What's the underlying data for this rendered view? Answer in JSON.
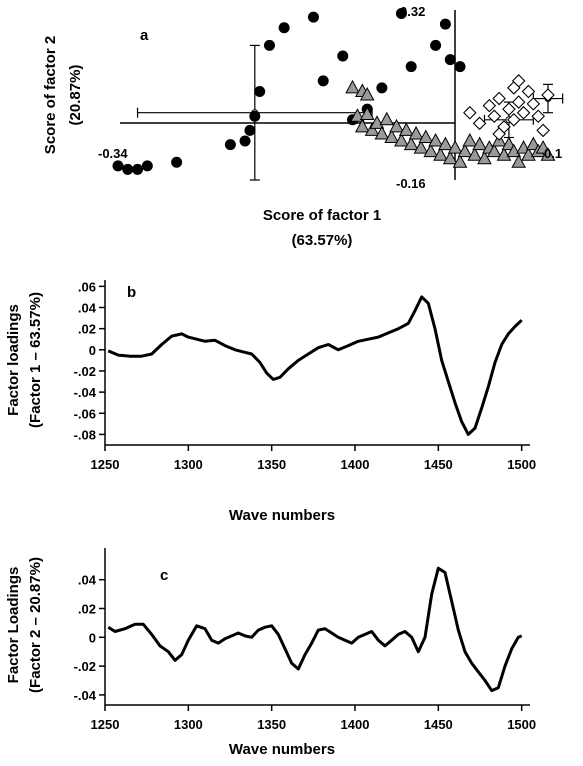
{
  "chart_data": [
    {
      "type": "scatter",
      "panel_label": "a",
      "xlabel_line1": "Score of factor 1",
      "xlabel_line2": "(63.57%)",
      "ylabel_line1": "Score of factor 2",
      "ylabel_line2": "(20.87%)",
      "annotations": {
        "xmin_label": "-0.34",
        "xmax_label": "0.1",
        "ymin_label": "-0.16",
        "ymax_label": "0.32"
      },
      "xlim": [
        -0.34,
        0.1
      ],
      "ylim": [
        -0.16,
        0.32
      ],
      "series": [
        {
          "marker": "filled-circle",
          "points": [
            [
              -0.34,
              -0.12
            ],
            [
              -0.33,
              -0.13
            ],
            [
              -0.32,
              -0.13
            ],
            [
              -0.31,
              -0.12
            ],
            [
              -0.28,
              -0.11
            ],
            [
              -0.225,
              -0.06
            ],
            [
              -0.21,
              -0.05
            ],
            [
              -0.205,
              -0.02
            ],
            [
              -0.2,
              0.02
            ],
            [
              -0.185,
              0.22
            ],
            [
              -0.17,
              0.27
            ],
            [
              -0.14,
              0.3
            ],
            [
              -0.1,
              0.01
            ],
            [
              -0.085,
              0.04
            ],
            [
              -0.07,
              0.1
            ],
            [
              -0.05,
              0.31
            ],
            [
              -0.04,
              0.16
            ],
            [
              -0.015,
              0.22
            ],
            [
              -0.005,
              0.28
            ],
            [
              0.0,
              0.18
            ],
            [
              0.01,
              0.16
            ],
            [
              -0.11,
              0.19
            ],
            [
              -0.13,
              0.12
            ],
            [
              -0.195,
              0.09
            ]
          ]
        },
        {
          "marker": "gray-triangle",
          "points": [
            [
              -0.095,
              0.02
            ],
            [
              -0.09,
              -0.01
            ],
            [
              -0.085,
              0.025
            ],
            [
              -0.08,
              -0.02
            ],
            [
              -0.075,
              0.0
            ],
            [
              -0.07,
              -0.03
            ],
            [
              -0.065,
              0.01
            ],
            [
              -0.06,
              -0.04
            ],
            [
              -0.055,
              -0.01
            ],
            [
              -0.05,
              -0.05
            ],
            [
              -0.045,
              -0.02
            ],
            [
              -0.04,
              -0.06
            ],
            [
              -0.035,
              -0.03
            ],
            [
              -0.03,
              -0.07
            ],
            [
              -0.025,
              -0.04
            ],
            [
              -0.02,
              -0.08
            ],
            [
              -0.015,
              -0.05
            ],
            [
              -0.01,
              -0.09
            ],
            [
              -0.005,
              -0.06
            ],
            [
              0.0,
              -0.1
            ],
            [
              0.005,
              -0.07
            ],
            [
              0.01,
              -0.11
            ],
            [
              0.015,
              -0.08
            ],
            [
              0.02,
              -0.05
            ],
            [
              0.025,
              -0.09
            ],
            [
              0.03,
              -0.06
            ],
            [
              0.035,
              -0.1
            ],
            [
              0.04,
              -0.07
            ],
            [
              0.045,
              -0.08
            ],
            [
              0.05,
              -0.05
            ],
            [
              0.055,
              -0.09
            ],
            [
              0.06,
              -0.06
            ],
            [
              0.065,
              -0.08
            ],
            [
              0.07,
              -0.11
            ],
            [
              0.075,
              -0.07
            ],
            [
              0.08,
              -0.09
            ],
            [
              0.085,
              -0.06
            ],
            [
              0.09,
              -0.08
            ],
            [
              0.095,
              -0.07
            ],
            [
              0.1,
              -0.09
            ],
            [
              -0.1,
              0.1
            ],
            [
              -0.09,
              0.09
            ],
            [
              -0.085,
              0.08
            ]
          ]
        },
        {
          "marker": "open-diamond",
          "points": [
            [
              0.02,
              0.03
            ],
            [
              0.03,
              0.0
            ],
            [
              0.04,
              0.05
            ],
            [
              0.045,
              0.02
            ],
            [
              0.05,
              0.07
            ],
            [
              0.055,
              -0.01
            ],
            [
              0.06,
              0.04
            ],
            [
              0.065,
              0.01
            ],
            [
              0.07,
              0.06
            ],
            [
              0.075,
              0.03
            ],
            [
              0.08,
              0.09
            ],
            [
              0.09,
              0.02
            ],
            [
              0.085,
              0.055
            ],
            [
              0.1,
              0.08
            ],
            [
              0.095,
              -0.02
            ],
            [
              0.07,
              0.12
            ],
            [
              0.065,
              0.1
            ],
            [
              0.05,
              -0.03
            ]
          ]
        }
      ],
      "error_bars": [
        {
          "x": -0.2,
          "y": 0.03,
          "xerr": 0.12,
          "yerr": 0.19
        },
        {
          "x": 0.06,
          "y": 0.01,
          "xerr": 0.025,
          "yerr": 0.05
        },
        {
          "x": 0.1,
          "y": 0.07,
          "xerr": 0.015,
          "yerr": 0.04
        }
      ]
    },
    {
      "type": "line",
      "panel_label": "b",
      "xlabel": "Wave numbers",
      "ylabel_line1": "Factor loadings",
      "ylabel_line2": "(Factor 1 – 63.57%)",
      "x_ticks": [
        "1250",
        "1300",
        "1350",
        "1400",
        "1450",
        "1500"
      ],
      "y_ticks": [
        ".06",
        ".04",
        ".02",
        "0",
        "-.02",
        "-.04",
        "-.06",
        "-.08"
      ],
      "xlim": [
        1250,
        1505
      ],
      "ylim": [
        -0.09,
        0.066
      ],
      "x": [
        1252,
        1258,
        1265,
        1272,
        1278,
        1284,
        1290,
        1296,
        1300,
        1305,
        1310,
        1316,
        1322,
        1328,
        1333,
        1338,
        1343,
        1347,
        1351,
        1355,
        1360,
        1366,
        1372,
        1378,
        1384,
        1390,
        1396,
        1402,
        1408,
        1414,
        1420,
        1426,
        1432,
        1436,
        1440,
        1444,
        1448,
        1452,
        1456,
        1460,
        1464,
        1468,
        1472,
        1476,
        1480,
        1484,
        1488,
        1492,
        1496,
        1500
      ],
      "values": [
        -0.001,
        -0.005,
        -0.006,
        -0.006,
        -0.004,
        0.005,
        0.013,
        0.015,
        0.012,
        0.01,
        0.008,
        0.009,
        0.004,
        0.0,
        -0.002,
        -0.004,
        -0.012,
        -0.022,
        -0.028,
        -0.026,
        -0.018,
        -0.01,
        -0.004,
        0.002,
        0.005,
        0.0,
        0.004,
        0.008,
        0.01,
        0.012,
        0.016,
        0.02,
        0.025,
        0.037,
        0.05,
        0.044,
        0.02,
        -0.01,
        -0.03,
        -0.05,
        -0.068,
        -0.08,
        -0.074,
        -0.055,
        -0.035,
        -0.012,
        0.005,
        0.015,
        0.022,
        0.028
      ]
    },
    {
      "type": "line",
      "panel_label": "c",
      "xlabel": "Wave numbers",
      "ylabel_line1": "Factor Loadings",
      "ylabel_line2": "(Factor 2 – 20.87%)",
      "x_ticks": [
        "1250",
        "1300",
        "1350",
        "1400",
        "1450",
        "1500"
      ],
      "y_ticks": [
        ".04",
        ".02",
        "0",
        "-.02",
        "-.04"
      ],
      "xlim": [
        1250,
        1505
      ],
      "ylim": [
        -0.047,
        0.062
      ],
      "x": [
        1252,
        1256,
        1262,
        1268,
        1273,
        1278,
        1283,
        1288,
        1292,
        1296,
        1300,
        1305,
        1310,
        1314,
        1318,
        1322,
        1326,
        1330,
        1334,
        1338,
        1342,
        1346,
        1350,
        1354,
        1358,
        1362,
        1366,
        1370,
        1374,
        1378,
        1382,
        1386,
        1390,
        1394,
        1398,
        1402,
        1406,
        1410,
        1414,
        1418,
        1422,
        1426,
        1430,
        1434,
        1438,
        1442,
        1446,
        1450,
        1454,
        1458,
        1462,
        1466,
        1470,
        1474,
        1478,
        1482,
        1486,
        1490,
        1494,
        1498,
        1500
      ],
      "values": [
        0.007,
        0.004,
        0.006,
        0.009,
        0.009,
        0.002,
        -0.006,
        -0.01,
        -0.016,
        -0.012,
        -0.002,
        0.008,
        0.006,
        -0.002,
        -0.004,
        -0.001,
        0.001,
        0.003,
        0.001,
        0.0,
        0.005,
        0.007,
        0.008,
        0.002,
        -0.008,
        -0.018,
        -0.022,
        -0.012,
        -0.004,
        0.005,
        0.006,
        0.003,
        0.0,
        -0.002,
        -0.004,
        0.0,
        0.002,
        0.004,
        -0.002,
        -0.006,
        -0.002,
        0.002,
        0.004,
        0.0,
        -0.01,
        0.0,
        0.03,
        0.048,
        0.045,
        0.025,
        0.005,
        -0.01,
        -0.018,
        -0.024,
        -0.03,
        -0.037,
        -0.035,
        -0.02,
        -0.008,
        0.0,
        0.001
      ]
    }
  ]
}
